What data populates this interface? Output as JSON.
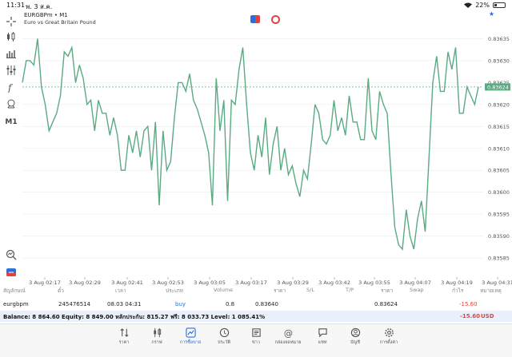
{
  "status_bar": {
    "time": "11:31",
    "date": "พ. 3 ส.ค.",
    "battery": "22%",
    "battery_level": 0.22
  },
  "chart": {
    "symbol_line": "EURGBPm • M1",
    "description": "Euro vs Great Britain Pound",
    "price_tag": "0.83624",
    "timeframe_label": "M1",
    "colors": {
      "line": "#5aaa82",
      "grid": "#ececec",
      "bid_line": "#5aaa82",
      "price_tag_bg": "#5aaa82"
    }
  },
  "chart_data": {
    "type": "line",
    "y_ticks": [
      "0.83635",
      "0.83630",
      "0.83625",
      "0.83620",
      "0.83615",
      "0.83610",
      "0.83605",
      "0.83600",
      "0.83595",
      "0.83590",
      "0.83585"
    ],
    "x_ticks": [
      "3 Aug 02:17",
      "3 Aug 02:29",
      "3 Aug 02:41",
      "3 Aug 02:53",
      "3 Aug 03:05",
      "3 Aug 03:17",
      "3 Aug 03:29",
      "3 Aug 03:42",
      "3 Aug 03:55",
      "3 Aug 04:07",
      "3 Aug 04:19",
      "3 Aug 04:31"
    ],
    "ylim": [
      0.83581,
      0.83638
    ],
    "current_price": 0.83624,
    "values": [
      0.83625,
      0.8363,
      0.8363,
      0.83629,
      0.83635,
      0.83624,
      0.8362,
      0.83614,
      0.83616,
      0.83618,
      0.83622,
      0.83632,
      0.83631,
      0.83633,
      0.83625,
      0.83629,
      0.83626,
      0.8362,
      0.83621,
      0.83614,
      0.83621,
      0.83618,
      0.83618,
      0.83613,
      0.83617,
      0.83613,
      0.83605,
      0.83605,
      0.83613,
      0.83609,
      0.83614,
      0.83608,
      0.83614,
      0.83615,
      0.83605,
      0.83616,
      0.83597,
      0.83614,
      0.83605,
      0.83607,
      0.83617,
      0.83625,
      0.83625,
      0.83623,
      0.83627,
      0.83621,
      0.83619,
      0.83616,
      0.83613,
      0.83609,
      0.83597,
      0.83626,
      0.83614,
      0.83621,
      0.83598,
      0.83621,
      0.8362,
      0.83628,
      0.83633,
      0.8362,
      0.83609,
      0.83605,
      0.83613,
      0.83608,
      0.83617,
      0.83604,
      0.83611,
      0.83615,
      0.83605,
      0.8361,
      0.83604,
      0.83606,
      0.83602,
      0.83599,
      0.83605,
      0.83603,
      0.83611,
      0.8362,
      0.83618,
      0.83612,
      0.83611,
      0.83613,
      0.83621,
      0.83614,
      0.83617,
      0.83613,
      0.83622,
      0.83616,
      0.83616,
      0.83612,
      0.83612,
      0.83626,
      0.83614,
      0.83612,
      0.83623,
      0.8362,
      0.83618,
      0.83604,
      0.83592,
      0.83588,
      0.83587,
      0.83596,
      0.8359,
      0.83587,
      0.83594,
      0.83598,
      0.83591,
      0.83608,
      0.83625,
      0.83631,
      0.83623,
      0.83623,
      0.83632,
      0.83628,
      0.83633,
      0.83618,
      0.83618,
      0.83624,
      0.83622,
      0.8362,
      0.83624
    ]
  },
  "toolbar": {
    "items": [
      {
        "name": "crosshair-icon"
      },
      {
        "name": "chart-type-icon"
      },
      {
        "name": "bar-chart-icon"
      },
      {
        "name": "indicators-icon"
      },
      {
        "name": "function-icon"
      },
      {
        "name": "objects-icon"
      },
      {
        "name": "timeframe-m1"
      },
      {
        "name": "zoom-icon"
      },
      {
        "name": "oneclick-icon"
      }
    ]
  },
  "trade_table": {
    "headers": {
      "symbol": "สัญลักษณ์",
      "ticket": "ตั๋ว",
      "time": "เวลา",
      "type": "ประเภท",
      "volume": "Volume",
      "price": "ราคา",
      "sl": "S/L",
      "tp": "T/P",
      "current_price": "ราคา",
      "swap": "Swap",
      "profit": "กำไร",
      "comment": "หมายเหตุ"
    },
    "row": {
      "symbol": "eurgbpm",
      "ticket": "245476514",
      "time": "08.03 04:31",
      "type": "buy",
      "volume": "0.8",
      "price": "0.83640",
      "current_price": "0.83624",
      "profit": "-15.60"
    }
  },
  "balance_bar": {
    "text": "Balance: 8 864.60 Equity: 8 849.00 หลักประกัน: 815.27 ฟรี: 8 033.73 Level: 1 085.41%",
    "profit": "-15.60",
    "currency": "USD"
  },
  "bottom_nav": {
    "items": [
      {
        "label": "ราคา",
        "icon": "quotes-icon"
      },
      {
        "label": "กราฟ",
        "icon": "charts-icon"
      },
      {
        "label": "การซื้อขาย",
        "icon": "trade-icon",
        "active": true
      },
      {
        "label": "ประวัติ",
        "icon": "history-icon"
      },
      {
        "label": "ข่าว",
        "icon": "news-icon"
      },
      {
        "label": "กล่องจดหมาย",
        "icon": "mailbox-icon"
      },
      {
        "label": "แชท",
        "icon": "chat-icon"
      },
      {
        "label": "บัญชี",
        "icon": "account-icon"
      },
      {
        "label": "การตั้งค่า",
        "icon": "settings-icon"
      }
    ]
  }
}
